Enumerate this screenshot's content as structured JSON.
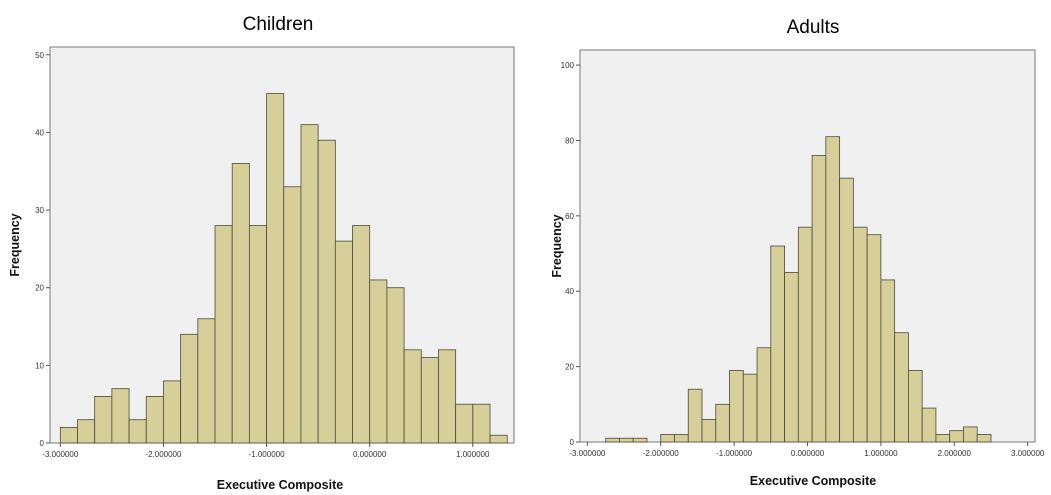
{
  "chart_data": [
    {
      "type": "bar",
      "title": "Children",
      "xlabel": "Executive Composite",
      "ylabel": "Frequency",
      "xlim": [
        -3.1,
        1.4
      ],
      "ylim": [
        0,
        51
      ],
      "xticks": [
        -3,
        -2,
        -1,
        0,
        1
      ],
      "xtick_labels": [
        "-3.000000",
        "-2.000000",
        "-1.000000",
        "0.000000",
        "1.000000"
      ],
      "yticks": [
        0,
        10,
        20,
        30,
        40,
        50
      ],
      "yticks_labels": [
        "0",
        "10",
        "20",
        "30",
        "40",
        "50"
      ],
      "bin_start": -3.0,
      "bin_width": 0.1667,
      "values": [
        2,
        3,
        6,
        7,
        3,
        6,
        8,
        14,
        16,
        28,
        36,
        28,
        45,
        33,
        41,
        39,
        26,
        28,
        21,
        20,
        12,
        11,
        12,
        5,
        5,
        1
      ],
      "grid": false,
      "color": "#d6cf99"
    },
    {
      "type": "bar",
      "title": "Adults",
      "xlabel": "Executive Composite",
      "ylabel": "Frequency",
      "xlim": [
        -3.1,
        3.1
      ],
      "ylim": [
        0,
        104
      ],
      "xticks": [
        -3,
        -2,
        -1,
        0,
        1,
        2,
        3
      ],
      "xtick_labels": [
        "-3.000000",
        "-2.000000",
        "-1.000000",
        "0.000000",
        "1.000000",
        "2.000000",
        "3.000000"
      ],
      "yticks": [
        0,
        20,
        40,
        60,
        80,
        100
      ],
      "yticks_labels": [
        "0",
        "20",
        "40",
        "60",
        "80",
        "100"
      ],
      "bin_start": -2.75,
      "bin_width": 0.1875,
      "values": [
        1,
        1,
        1,
        0,
        2,
        2,
        14,
        6,
        10,
        19,
        18,
        25,
        52,
        45,
        57,
        76,
        81,
        70,
        57,
        55,
        43,
        29,
        19,
        9,
        2,
        3,
        4,
        2
      ],
      "grid": false,
      "color": "#d6cf99"
    }
  ]
}
